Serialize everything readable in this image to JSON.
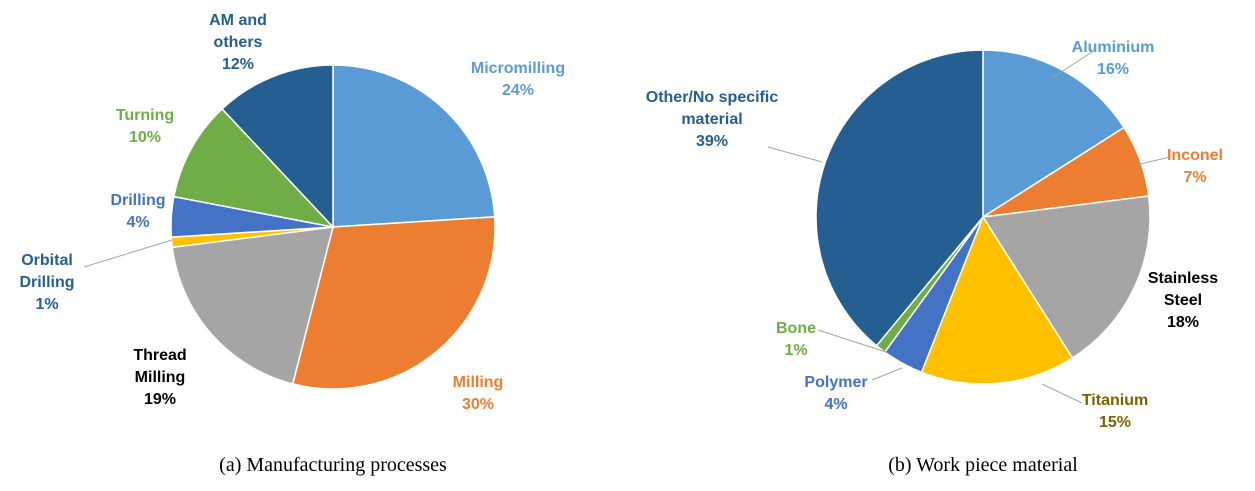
{
  "chart_data": [
    {
      "type": "pie",
      "caption": "(a) Manufacturing processes",
      "categories": [
        "Micromilling",
        "Milling",
        "Thread Milling",
        "Orbital Drilling",
        "Drilling",
        "Turning",
        "AM and others"
      ],
      "values": [
        24,
        30,
        19,
        1,
        4,
        10,
        12
      ],
      "value_labels": [
        "24%",
        "30%",
        "19%",
        "1%",
        "4%",
        "10%",
        "12%"
      ],
      "colors": [
        "#5b9bd5",
        "#ed7d31",
        "#a5a5a5",
        "#ffc000",
        "#4472c4",
        "#70ad47",
        "#255e91"
      ],
      "label_colors": [
        "#5b9bd5",
        "#ed7d31",
        "#000000",
        "#255e91",
        "#4472c4",
        "#70ad47",
        "#255e91"
      ]
    },
    {
      "type": "pie",
      "caption": "(b) Work piece material",
      "categories": [
        "Aluminium",
        "Inconel",
        "Stainless Steel",
        "Titanium",
        "Polymer",
        "Bone",
        "Other/No specific material"
      ],
      "values": [
        16,
        7,
        18,
        15,
        4,
        1,
        39
      ],
      "value_labels": [
        "16%",
        "7%",
        "18%",
        "15%",
        "4%",
        "1%",
        "39%"
      ],
      "colors": [
        "#5b9bd5",
        "#ed7d31",
        "#a5a5a5",
        "#ffc000",
        "#4472c4",
        "#70ad47",
        "#255e91"
      ],
      "label_colors": [
        "#5b9bd5",
        "#ed7d31",
        "#000000",
        "#7f6000",
        "#4472c4",
        "#70ad47",
        "#255e91"
      ]
    }
  ]
}
